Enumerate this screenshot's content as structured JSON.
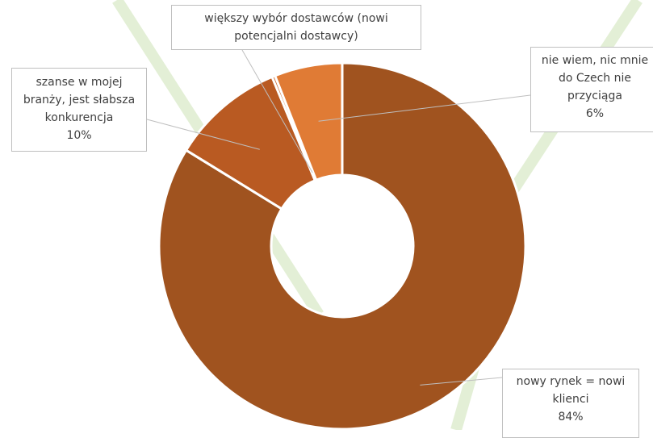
{
  "chart_data": {
    "type": "pie",
    "style": "doughnut",
    "title": "",
    "slices": [
      {
        "label_lines": [
          "nowy rynek = nowi",
          "klienci"
        ],
        "value": 84,
        "value_label": "84%",
        "color": "#a0531f"
      },
      {
        "label_lines": [
          "szanse w mojej",
          "branży, jest słabsza",
          "konkurencja"
        ],
        "value": 10,
        "value_label": "10%",
        "color": "#b95a22"
      },
      {
        "label_lines": [
          "większy wybór dostawców (nowi",
          "potencjalni dostawcy)"
        ],
        "value": 0,
        "value_label": "",
        "color": "#c65f24"
      },
      {
        "label_lines": [
          "nie wiem, nic mnie",
          "do Czech nie",
          "przyciąga"
        ],
        "value": 6,
        "value_label": "6%",
        "color": "#e07b35"
      }
    ]
  },
  "background": {
    "decorative_lines_color": "#e3efd6",
    "separator_color": "#ffffff"
  }
}
